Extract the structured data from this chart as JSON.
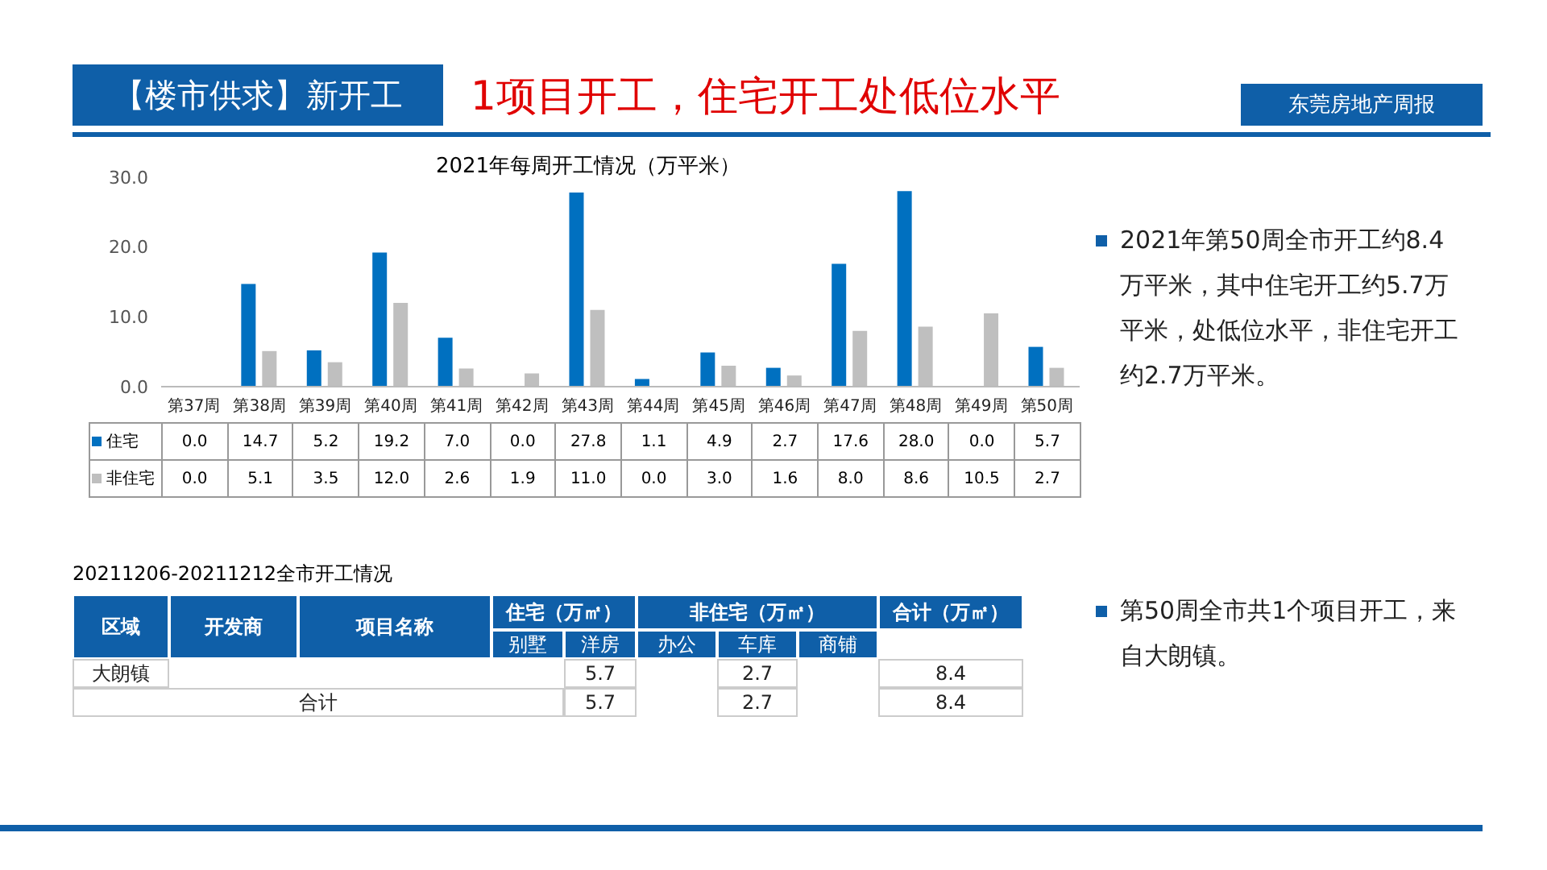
{
  "chart_data": [
    {
      "type": "bar",
      "title": "2021年每周开工情况（万平米）",
      "categories": [
        "第37周",
        "第38周",
        "第39周",
        "第40周",
        "第41周",
        "第42周",
        "第43周",
        "第44周",
        "第45周",
        "第46周",
        "第47周",
        "第48周",
        "第49周",
        "第50周"
      ],
      "series": [
        {
          "name": "住宅",
          "color": "#0070c0",
          "values": [
            0.0,
            14.7,
            5.2,
            19.2,
            7.0,
            0.0,
            27.8,
            1.1,
            4.9,
            2.7,
            17.6,
            28.0,
            0.0,
            5.7
          ],
          "value_labels": [
            "0.0",
            "14.7",
            "5.2",
            "19.2",
            "7.0",
            "0.0",
            "27.8",
            "1.1",
            "4.9",
            "2.7",
            "17.6",
            "28.0",
            "0.0",
            "5.7"
          ]
        },
        {
          "name": "非住宅",
          "color": "#bfbfbf",
          "values": [
            0.0,
            5.1,
            3.5,
            12.0,
            2.6,
            1.9,
            11.0,
            0.0,
            3.0,
            1.6,
            8.0,
            8.6,
            10.5,
            2.7
          ],
          "value_labels": [
            "0.0",
            "5.1",
            "3.5",
            "12.0",
            "2.6",
            "1.9",
            "11.0",
            "0.0",
            "3.0",
            "1.6",
            "8.0",
            "8.6",
            "10.5",
            "2.7"
          ]
        }
      ],
      "ylim": [
        0,
        30
      ],
      "yticks": [
        {
          "value": 0,
          "label": "0.0"
        },
        {
          "value": 10,
          "label": "10.0"
        },
        {
          "value": 20,
          "label": "20.0"
        },
        {
          "value": 30,
          "label": "30.0"
        }
      ],
      "legend": "bottom",
      "grid": false,
      "annotations": [
        "【楼市供求】新开工",
        "1项目开工，住宅开工处低位水平",
        "东莞房地产周报",
        "2021年第50周全市开工约8.4万平米，其中住宅开工约5.7万平米，处低位水平，非住宅开工约2.7万平米。",
        "第50周全市共1个项目开工，来自大朗镇。"
      ]
    },
    {
      "type": "other",
      "title": "20211206-20211212全市开工情况",
      "annotations": [
        "区域",
        "开发商",
        "项目名称",
        "住宅（万㎡）",
        "非住宅（万㎡）",
        "合计（万㎡）",
        "别墅",
        "洋房",
        "办公",
        "车库",
        "商铺",
        "大朗镇",
        "5.7",
        "2.7",
        "8.4",
        "合计",
        "5.7",
        "2.7",
        "8.4"
      ]
    }
  ]
}
